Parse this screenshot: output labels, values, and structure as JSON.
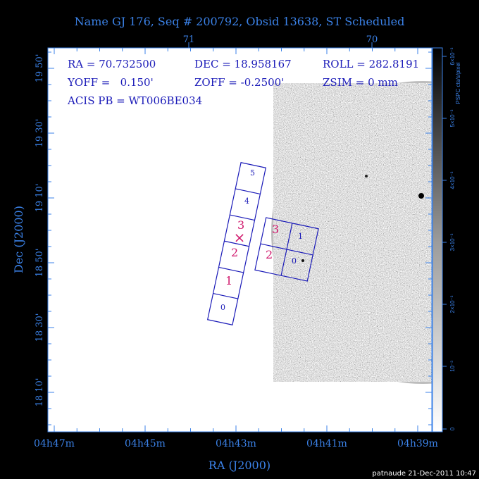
{
  "title": "Name GJ 176, Seq # 200792, Obsid 13638, ST Scheduled",
  "info": {
    "ra": "RA = 70.732500",
    "dec": "DEC = 18.958167",
    "roll": "ROLL = 282.8191",
    "yoff": "YOFF =   0.150'",
    "zoff": "ZOFF = -0.2500'",
    "zsim": "ZSIM = 0 mm",
    "acis_pb": "ACIS PB = WT006BE034"
  },
  "axes": {
    "xlabel": "RA (J2000)",
    "ylabel": "Dec (J2000)",
    "x_ticks": [
      "04h47m",
      "04h45m",
      "04h43m",
      "04h41m",
      "04h39m"
    ],
    "y_ticks": [
      "19 50'",
      "19 30'",
      "19 10'",
      "18 50'",
      "18 30'",
      "18 10'"
    ],
    "top_ticks": [
      "71",
      "70"
    ]
  },
  "colorbar": {
    "label": "PSPC cts/s/pixel",
    "ticks": [
      "0",
      "10⁻³",
      "2×10⁻³",
      "3×10⁻³",
      "4×10⁻³",
      "5×10⁻³",
      "6×10⁻³"
    ]
  },
  "chips": {
    "acis_s": [
      "0",
      "1",
      "2",
      "3",
      "4",
      "5"
    ],
    "acis_i": [
      "0",
      "1",
      "2",
      "3"
    ]
  },
  "aimpoint_marker": "×",
  "footer": "patnaude 21-Dec-2011 10:47",
  "colors": {
    "axis": "#3b82e8",
    "chip": "#1a1ab8",
    "highlight": "#d0186c",
    "background": "#000000",
    "plot": "#ffffff"
  }
}
